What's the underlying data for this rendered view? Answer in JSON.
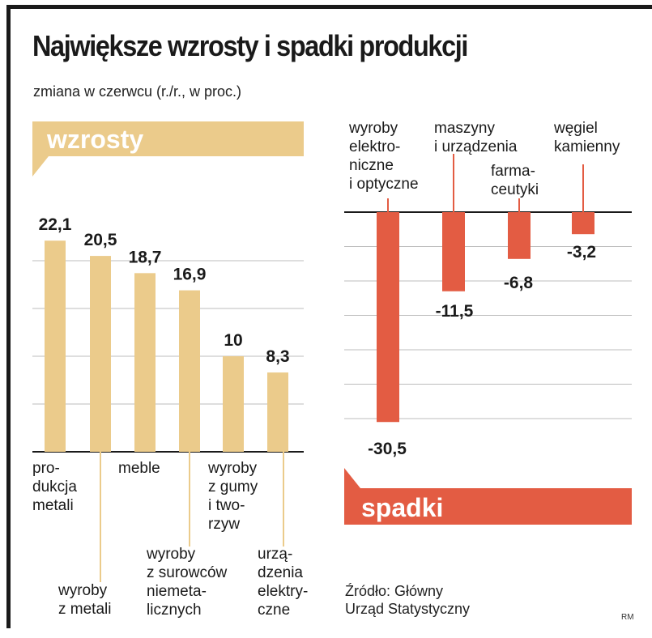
{
  "title": "Największe wzrosty i spadki produkcji",
  "subtitle": "zmiana w czerwcu (r./r., w proc.)",
  "source": [
    "Źródło: Główny",
    "Urząd Statystyczny"
  ],
  "credit": "RM",
  "colors": {
    "increase": "#ebcb8b",
    "decrease": "#e35c43",
    "frame": "#1a1a1a",
    "grid": "#bdbdbd"
  },
  "chart_data": [
    {
      "type": "bar",
      "banner": "wzrosty",
      "categories": [
        "produkcja metali",
        "wyroby z metali",
        "meble",
        "wyroby z surowców niemetalicznych",
        "wyroby z gumy i tworzyw",
        "urządzenia elektryczne"
      ],
      "category_lines": [
        [
          "pro-",
          "dukcja",
          "metali"
        ],
        [
          "wyroby",
          "z metali"
        ],
        [
          "meble"
        ],
        [
          "wyroby",
          "z surowców",
          "niemeta-",
          "licznych"
        ],
        [
          "wyroby",
          "z gumy",
          "i two-",
          "rzyw"
        ],
        [
          "urzą-",
          "dzenia",
          "elektry-",
          "czne"
        ]
      ],
      "values": [
        22.1,
        20.5,
        18.7,
        16.9,
        10,
        8.3
      ],
      "value_labels": [
        "22,1",
        "20,5",
        "18,7",
        "16,9",
        "10",
        "8,3"
      ],
      "ylim": [
        0,
        25
      ],
      "grid": true
    },
    {
      "type": "bar",
      "banner": "spadki",
      "categories": [
        "wyroby elektroniczne i optyczne",
        "maszyny i urządzenia",
        "farmaceutyki",
        "węgiel kamienny"
      ],
      "category_lines": [
        [
          "wyroby",
          "elektro-",
          "niczne",
          "i optyczne"
        ],
        [
          "maszyny",
          "i urządzenia"
        ],
        [
          "farma-",
          "ceutyki"
        ],
        [
          "węgiel",
          "kamienny"
        ]
      ],
      "values": [
        -30.5,
        -11.5,
        -6.8,
        -3.2
      ],
      "value_labels": [
        "-30,5",
        "-11,5",
        "-6,8",
        "-3,2"
      ],
      "ylim": [
        -35,
        0
      ],
      "grid": true
    }
  ]
}
